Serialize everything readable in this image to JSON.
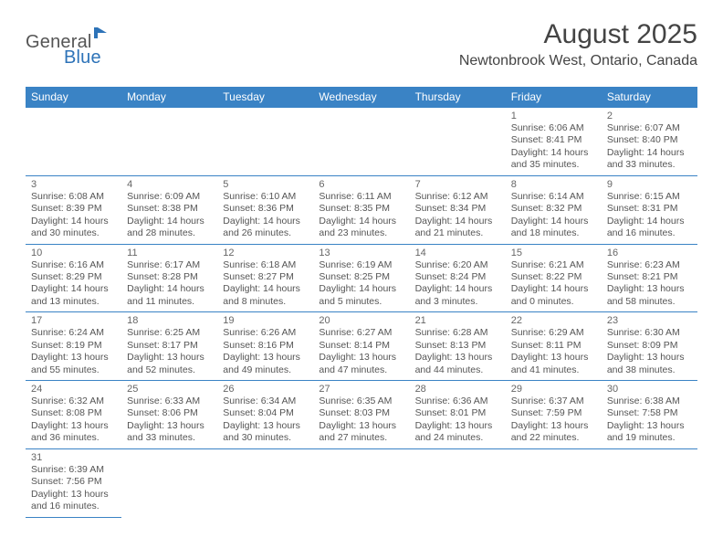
{
  "brand": {
    "name_a": "General",
    "name_b": "Blue"
  },
  "title": "August 2025",
  "location": "Newtonbrook West, Ontario, Canada",
  "colors": {
    "header_bg": "#3a83c5",
    "header_text": "#ffffff",
    "rule": "#3a83c5",
    "body_text": "#555555",
    "daynum_text": "#666666",
    "title_text": "#444444",
    "brand_gray": "#555555",
    "brand_blue": "#2d73b8",
    "page_bg": "#ffffff"
  },
  "typography": {
    "title_fontsize": 30,
    "location_fontsize": 16,
    "dow_fontsize": 12,
    "daynum_fontsize": 11,
    "body_fontsize": 10.5,
    "logo_fontsize": 20
  },
  "dow": [
    "Sunday",
    "Monday",
    "Tuesday",
    "Wednesday",
    "Thursday",
    "Friday",
    "Saturday"
  ],
  "weeks": [
    [
      null,
      null,
      null,
      null,
      null,
      {
        "n": "1",
        "sr": "Sunrise: 6:06 AM",
        "ss": "Sunset: 8:41 PM",
        "d1": "Daylight: 14 hours",
        "d2": "and 35 minutes."
      },
      {
        "n": "2",
        "sr": "Sunrise: 6:07 AM",
        "ss": "Sunset: 8:40 PM",
        "d1": "Daylight: 14 hours",
        "d2": "and 33 minutes."
      }
    ],
    [
      {
        "n": "3",
        "sr": "Sunrise: 6:08 AM",
        "ss": "Sunset: 8:39 PM",
        "d1": "Daylight: 14 hours",
        "d2": "and 30 minutes."
      },
      {
        "n": "4",
        "sr": "Sunrise: 6:09 AM",
        "ss": "Sunset: 8:38 PM",
        "d1": "Daylight: 14 hours",
        "d2": "and 28 minutes."
      },
      {
        "n": "5",
        "sr": "Sunrise: 6:10 AM",
        "ss": "Sunset: 8:36 PM",
        "d1": "Daylight: 14 hours",
        "d2": "and 26 minutes."
      },
      {
        "n": "6",
        "sr": "Sunrise: 6:11 AM",
        "ss": "Sunset: 8:35 PM",
        "d1": "Daylight: 14 hours",
        "d2": "and 23 minutes."
      },
      {
        "n": "7",
        "sr": "Sunrise: 6:12 AM",
        "ss": "Sunset: 8:34 PM",
        "d1": "Daylight: 14 hours",
        "d2": "and 21 minutes."
      },
      {
        "n": "8",
        "sr": "Sunrise: 6:14 AM",
        "ss": "Sunset: 8:32 PM",
        "d1": "Daylight: 14 hours",
        "d2": "and 18 minutes."
      },
      {
        "n": "9",
        "sr": "Sunrise: 6:15 AM",
        "ss": "Sunset: 8:31 PM",
        "d1": "Daylight: 14 hours",
        "d2": "and 16 minutes."
      }
    ],
    [
      {
        "n": "10",
        "sr": "Sunrise: 6:16 AM",
        "ss": "Sunset: 8:29 PM",
        "d1": "Daylight: 14 hours",
        "d2": "and 13 minutes."
      },
      {
        "n": "11",
        "sr": "Sunrise: 6:17 AM",
        "ss": "Sunset: 8:28 PM",
        "d1": "Daylight: 14 hours",
        "d2": "and 11 minutes."
      },
      {
        "n": "12",
        "sr": "Sunrise: 6:18 AM",
        "ss": "Sunset: 8:27 PM",
        "d1": "Daylight: 14 hours",
        "d2": "and 8 minutes."
      },
      {
        "n": "13",
        "sr": "Sunrise: 6:19 AM",
        "ss": "Sunset: 8:25 PM",
        "d1": "Daylight: 14 hours",
        "d2": "and 5 minutes."
      },
      {
        "n": "14",
        "sr": "Sunrise: 6:20 AM",
        "ss": "Sunset: 8:24 PM",
        "d1": "Daylight: 14 hours",
        "d2": "and 3 minutes."
      },
      {
        "n": "15",
        "sr": "Sunrise: 6:21 AM",
        "ss": "Sunset: 8:22 PM",
        "d1": "Daylight: 14 hours",
        "d2": "and 0 minutes."
      },
      {
        "n": "16",
        "sr": "Sunrise: 6:23 AM",
        "ss": "Sunset: 8:21 PM",
        "d1": "Daylight: 13 hours",
        "d2": "and 58 minutes."
      }
    ],
    [
      {
        "n": "17",
        "sr": "Sunrise: 6:24 AM",
        "ss": "Sunset: 8:19 PM",
        "d1": "Daylight: 13 hours",
        "d2": "and 55 minutes."
      },
      {
        "n": "18",
        "sr": "Sunrise: 6:25 AM",
        "ss": "Sunset: 8:17 PM",
        "d1": "Daylight: 13 hours",
        "d2": "and 52 minutes."
      },
      {
        "n": "19",
        "sr": "Sunrise: 6:26 AM",
        "ss": "Sunset: 8:16 PM",
        "d1": "Daylight: 13 hours",
        "d2": "and 49 minutes."
      },
      {
        "n": "20",
        "sr": "Sunrise: 6:27 AM",
        "ss": "Sunset: 8:14 PM",
        "d1": "Daylight: 13 hours",
        "d2": "and 47 minutes."
      },
      {
        "n": "21",
        "sr": "Sunrise: 6:28 AM",
        "ss": "Sunset: 8:13 PM",
        "d1": "Daylight: 13 hours",
        "d2": "and 44 minutes."
      },
      {
        "n": "22",
        "sr": "Sunrise: 6:29 AM",
        "ss": "Sunset: 8:11 PM",
        "d1": "Daylight: 13 hours",
        "d2": "and 41 minutes."
      },
      {
        "n": "23",
        "sr": "Sunrise: 6:30 AM",
        "ss": "Sunset: 8:09 PM",
        "d1": "Daylight: 13 hours",
        "d2": "and 38 minutes."
      }
    ],
    [
      {
        "n": "24",
        "sr": "Sunrise: 6:32 AM",
        "ss": "Sunset: 8:08 PM",
        "d1": "Daylight: 13 hours",
        "d2": "and 36 minutes."
      },
      {
        "n": "25",
        "sr": "Sunrise: 6:33 AM",
        "ss": "Sunset: 8:06 PM",
        "d1": "Daylight: 13 hours",
        "d2": "and 33 minutes."
      },
      {
        "n": "26",
        "sr": "Sunrise: 6:34 AM",
        "ss": "Sunset: 8:04 PM",
        "d1": "Daylight: 13 hours",
        "d2": "and 30 minutes."
      },
      {
        "n": "27",
        "sr": "Sunrise: 6:35 AM",
        "ss": "Sunset: 8:03 PM",
        "d1": "Daylight: 13 hours",
        "d2": "and 27 minutes."
      },
      {
        "n": "28",
        "sr": "Sunrise: 6:36 AM",
        "ss": "Sunset: 8:01 PM",
        "d1": "Daylight: 13 hours",
        "d2": "and 24 minutes."
      },
      {
        "n": "29",
        "sr": "Sunrise: 6:37 AM",
        "ss": "Sunset: 7:59 PM",
        "d1": "Daylight: 13 hours",
        "d2": "and 22 minutes."
      },
      {
        "n": "30",
        "sr": "Sunrise: 6:38 AM",
        "ss": "Sunset: 7:58 PM",
        "d1": "Daylight: 13 hours",
        "d2": "and 19 minutes."
      }
    ],
    [
      {
        "n": "31",
        "sr": "Sunrise: 6:39 AM",
        "ss": "Sunset: 7:56 PM",
        "d1": "Daylight: 13 hours",
        "d2": "and 16 minutes."
      },
      null,
      null,
      null,
      null,
      null,
      null
    ]
  ]
}
